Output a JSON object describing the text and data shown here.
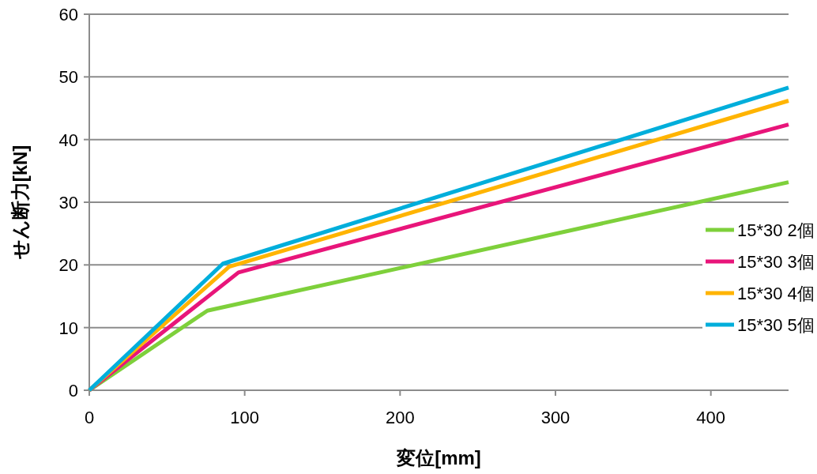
{
  "chart_data": {
    "type": "line",
    "xlabel": "変位[mm]",
    "ylabel": "せん断力[kN]",
    "xlim": [
      0,
      450
    ],
    "xticks": [
      0,
      100,
      200,
      300,
      400
    ],
    "ylim": [
      0,
      60
    ],
    "yticks": [
      0,
      10,
      20,
      30,
      40,
      50,
      60
    ],
    "grid": "y",
    "legend": "right",
    "marker": "none",
    "line_style": "solid",
    "series": [
      {
        "name": "15*30 2個",
        "color": "#7ed03b",
        "x": [
          0,
          76,
          450
        ],
        "values": [
          0,
          12.7,
          33.2
        ]
      },
      {
        "name": "15*30 3個",
        "color": "#e8157a",
        "x": [
          0,
          96,
          450
        ],
        "values": [
          0,
          18.8,
          42.4
        ]
      },
      {
        "name": "15*30 4個",
        "color": "#ffb400",
        "x": [
          0,
          90,
          450
        ],
        "values": [
          0,
          19.7,
          46.2
        ]
      },
      {
        "name": "15*30 5個",
        "color": "#00aedb",
        "x": [
          0,
          86,
          450
        ],
        "values": [
          0,
          20.2,
          48.3
        ]
      }
    ]
  }
}
